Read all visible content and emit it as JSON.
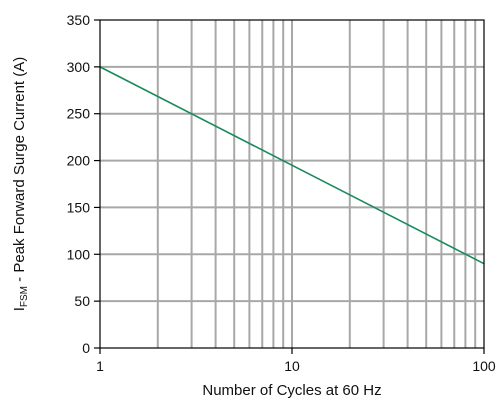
{
  "chart_data": {
    "type": "line",
    "title": "",
    "xlabel": "Number of Cycles at 60 Hz",
    "ylabel": {
      "main": "I",
      "subscript": "FSM",
      "rest": " - Peak Forward Surge Current (A)"
    },
    "x_scale": "log",
    "xlim": [
      1,
      100
    ],
    "ylim": [
      0,
      350
    ],
    "x_ticks": [
      1,
      10,
      100
    ],
    "x_tick_labels": [
      "1",
      "10",
      "100"
    ],
    "y_ticks": [
      0,
      50,
      100,
      150,
      200,
      250,
      300,
      350
    ],
    "y_tick_labels": [
      "0",
      "50",
      "100",
      "150",
      "200",
      "250",
      "300",
      "350"
    ],
    "grid": true,
    "series": [
      {
        "x": [
          1,
          100
        ],
        "y": [
          300,
          90
        ],
        "color": "#1a8a5a"
      }
    ]
  }
}
